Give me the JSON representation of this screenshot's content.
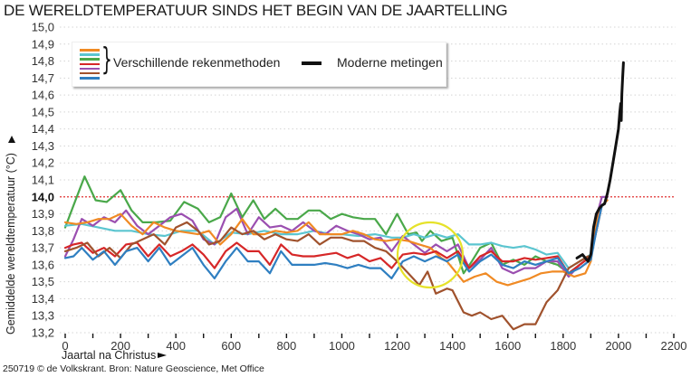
{
  "header": {
    "title": "DE WERELDTEMPERATUUR SINDS HET BEGIN VAN DE JAARTELLING"
  },
  "footer": {
    "source": "250719 © de Volkskrant. Bron: Nature Geoscience, Met Office"
  },
  "legend": {
    "methods_label": "Verschillende rekenmethoden",
    "modern_label": "Moderne metingen",
    "swatch_colors": [
      "#f08a24",
      "#5bc5d0",
      "#4aa84a",
      "#d62728",
      "#9b4fb0",
      "#a0522d",
      "#2f7fc1"
    ]
  },
  "chart_data": {
    "type": "line",
    "title": "DE WERELDTEMPERATUUR SINDS HET BEGIN VAN DE JAARTELLING",
    "xlabel": "Jaartal na Christus",
    "ylabel": "Gemiddelde wereldtemperatuur (°C)",
    "xlim": [
      0,
      2200
    ],
    "ylim": [
      13.2,
      15.0
    ],
    "xticks": [
      0,
      200,
      400,
      600,
      800,
      1000,
      1200,
      1400,
      1600,
      1800,
      2000,
      2200
    ],
    "yticks": [
      "15,0",
      "14,9",
      "14,8",
      "14,7",
      "14,6",
      "14,5",
      "14,4",
      "14,3",
      "14,2",
      "14,1",
      "14,0",
      "13,9",
      "13,8",
      "13,7",
      "13,6",
      "13,5",
      "13,4",
      "13,3",
      "13,2"
    ],
    "highlight_ytick": "14,0",
    "reference_line": {
      "y": 14.0,
      "color": "#e03030",
      "style": "dotted"
    },
    "grid": "horizontal dotted",
    "annotation": {
      "type": "circle",
      "center_x": 1320,
      "center_y": 13.66,
      "color": "#e6e22a"
    },
    "series": [
      {
        "name": "Rekenmethode groen",
        "color": "#4aa84a",
        "x": [
          0,
          30,
          70,
          110,
          150,
          200,
          240,
          280,
          330,
          380,
          430,
          480,
          520,
          560,
          600,
          640,
          680,
          720,
          760,
          800,
          840,
          880,
          920,
          960,
          1000,
          1040,
          1080,
          1120,
          1160,
          1200,
          1240,
          1270,
          1290,
          1320,
          1360,
          1400,
          1440,
          1470,
          1500,
          1540,
          1580,
          1620,
          1660,
          1700,
          1740,
          1780,
          1820,
          1860,
          1900,
          1920,
          1940
        ],
        "y": [
          13.82,
          13.95,
          14.12,
          13.98,
          13.97,
          14.04,
          13.92,
          13.85,
          13.85,
          13.86,
          13.97,
          13.93,
          13.85,
          13.88,
          14.02,
          13.88,
          13.98,
          13.87,
          13.93,
          13.87,
          13.87,
          13.92,
          13.92,
          13.87,
          13.9,
          13.88,
          13.87,
          13.87,
          13.78,
          13.9,
          13.78,
          13.79,
          13.74,
          13.8,
          13.74,
          13.76,
          13.55,
          13.62,
          13.7,
          13.73,
          13.6,
          13.63,
          13.6,
          13.65,
          13.62,
          13.6,
          13.55,
          13.6,
          13.65,
          13.8,
          13.95
        ]
      },
      {
        "name": "Rekenmethode cyaan",
        "color": "#5bc5d0",
        "x": [
          0,
          60,
          120,
          180,
          240,
          300,
          360,
          420,
          480,
          540,
          600,
          660,
          720,
          780,
          840,
          900,
          960,
          1000,
          1060,
          1120,
          1180,
          1220,
          1260,
          1300,
          1340,
          1380,
          1420,
          1460,
          1500,
          1540,
          1580,
          1620,
          1660,
          1700,
          1740,
          1780,
          1820,
          1860,
          1900,
          1920,
          1940
        ],
        "y": [
          13.83,
          13.84,
          13.82,
          13.8,
          13.8,
          13.78,
          13.77,
          13.8,
          13.8,
          13.72,
          13.79,
          13.78,
          13.8,
          13.78,
          13.78,
          13.8,
          13.78,
          13.78,
          13.77,
          13.78,
          13.76,
          13.76,
          13.78,
          13.76,
          13.78,
          13.76,
          13.78,
          13.72,
          13.72,
          13.73,
          13.71,
          13.7,
          13.71,
          13.69,
          13.66,
          13.67,
          13.58,
          13.62,
          13.66,
          13.8,
          13.95
        ]
      },
      {
        "name": "Rekenmethode paars",
        "color": "#9b4fb0",
        "x": [
          0,
          30,
          60,
          100,
          140,
          180,
          220,
          260,
          300,
          340,
          380,
          420,
          460,
          500,
          540,
          580,
          620,
          660,
          700,
          740,
          780,
          820,
          860,
          900,
          940,
          980,
          1020,
          1060,
          1100,
          1140,
          1180,
          1220,
          1260,
          1300,
          1340,
          1380,
          1420,
          1460,
          1500,
          1540,
          1580,
          1620,
          1660,
          1700,
          1740,
          1780,
          1820,
          1860,
          1900,
          1920,
          1940,
          1960
        ],
        "y": [
          13.65,
          13.75,
          13.87,
          13.83,
          13.88,
          13.85,
          13.92,
          13.83,
          13.78,
          13.83,
          13.88,
          13.9,
          13.86,
          13.75,
          13.72,
          13.88,
          13.93,
          13.78,
          13.88,
          13.82,
          13.83,
          13.8,
          13.85,
          13.8,
          13.78,
          13.83,
          13.8,
          13.78,
          13.75,
          13.76,
          13.68,
          13.77,
          13.72,
          13.67,
          13.72,
          13.68,
          13.72,
          13.58,
          13.63,
          13.7,
          13.58,
          13.55,
          13.58,
          13.58,
          13.62,
          13.62,
          13.53,
          13.6,
          13.65,
          13.88,
          14.0,
          14.0
        ]
      },
      {
        "name": "Rekenmethode oranje",
        "color": "#f08a24",
        "x": [
          0,
          40,
          80,
          120,
          160,
          200,
          240,
          280,
          320,
          360,
          400,
          440,
          480,
          520,
          560,
          600,
          640,
          680,
          720,
          760,
          800,
          840,
          880,
          920,
          960,
          1000,
          1040,
          1080,
          1120,
          1160,
          1200,
          1240,
          1280,
          1320,
          1360,
          1380,
          1440,
          1480,
          1520,
          1560,
          1600,
          1640,
          1680,
          1720,
          1760,
          1800,
          1840,
          1880,
          1900,
          1920,
          1940,
          1960
        ],
        "y": [
          13.85,
          13.84,
          13.85,
          13.87,
          13.87,
          13.9,
          13.83,
          13.78,
          13.85,
          13.82,
          13.8,
          13.79,
          13.78,
          13.8,
          13.72,
          13.78,
          13.87,
          13.78,
          13.78,
          13.8,
          13.79,
          13.8,
          13.85,
          13.78,
          13.78,
          13.78,
          13.8,
          13.78,
          13.75,
          13.74,
          13.75,
          13.74,
          13.72,
          13.7,
          13.64,
          13.62,
          13.5,
          13.53,
          13.55,
          13.5,
          13.48,
          13.5,
          13.52,
          13.55,
          13.56,
          13.56,
          13.53,
          13.55,
          13.62,
          13.85,
          13.95,
          13.98
        ]
      },
      {
        "name": "Rekenmethode rood",
        "color": "#d62728",
        "x": [
          0,
          30,
          60,
          100,
          140,
          180,
          220,
          260,
          300,
          340,
          380,
          420,
          460,
          500,
          540,
          580,
          620,
          660,
          700,
          740,
          780,
          820,
          860,
          900,
          940,
          980,
          1020,
          1060,
          1100,
          1140,
          1180,
          1220,
          1260,
          1300,
          1340,
          1380,
          1420,
          1460,
          1500,
          1540,
          1580,
          1620,
          1660,
          1700,
          1740,
          1780,
          1820,
          1860,
          1900,
          1920,
          1940
        ],
        "y": [
          13.7,
          13.72,
          13.73,
          13.67,
          13.7,
          13.65,
          13.72,
          13.73,
          13.65,
          13.72,
          13.65,
          13.68,
          13.72,
          13.66,
          13.58,
          13.68,
          13.73,
          13.68,
          13.68,
          13.6,
          13.72,
          13.66,
          13.65,
          13.65,
          13.66,
          13.67,
          13.64,
          13.66,
          13.62,
          13.64,
          13.58,
          13.66,
          13.67,
          13.66,
          13.68,
          13.64,
          13.68,
          13.58,
          13.65,
          13.68,
          13.62,
          13.62,
          13.64,
          13.63,
          13.64,
          13.65,
          13.55,
          13.6,
          13.65,
          13.8,
          13.95
        ]
      },
      {
        "name": "Rekenmethode bruin",
        "color": "#a0522d",
        "x": [
          0,
          40,
          80,
          120,
          160,
          200,
          240,
          280,
          320,
          360,
          400,
          440,
          480,
          520,
          560,
          600,
          640,
          680,
          720,
          760,
          800,
          840,
          880,
          920,
          960,
          1000,
          1040,
          1080,
          1120,
          1160,
          1200,
          1240,
          1280,
          1310,
          1340,
          1380,
          1400,
          1440,
          1470,
          1500,
          1540,
          1580,
          1620,
          1660,
          1700,
          1740,
          1780,
          1820,
          1860,
          1890
        ],
        "y": [
          13.68,
          13.7,
          13.73,
          13.65,
          13.7,
          13.64,
          13.72,
          13.75,
          13.78,
          13.72,
          13.82,
          13.85,
          13.8,
          13.72,
          13.74,
          13.82,
          13.78,
          13.8,
          13.75,
          13.78,
          13.75,
          13.74,
          13.78,
          13.72,
          13.76,
          13.76,
          13.74,
          13.74,
          13.7,
          13.68,
          13.62,
          13.55,
          13.48,
          13.56,
          13.43,
          13.46,
          13.45,
          13.32,
          13.3,
          13.32,
          13.28,
          13.3,
          13.22,
          13.25,
          13.25,
          13.38,
          13.45,
          13.58,
          13.62,
          13.65
        ]
      },
      {
        "name": "Rekenmethode blauw",
        "color": "#2f7fc1",
        "x": [
          0,
          30,
          60,
          100,
          140,
          180,
          220,
          260,
          300,
          340,
          380,
          420,
          460,
          500,
          540,
          580,
          620,
          660,
          700,
          740,
          780,
          820,
          860,
          900,
          940,
          980,
          1020,
          1060,
          1100,
          1140,
          1180,
          1220,
          1260,
          1300,
          1340,
          1380,
          1420,
          1460,
          1500,
          1540,
          1580,
          1620,
          1660,
          1700,
          1740,
          1780,
          1820,
          1860,
          1900,
          1920,
          1940
        ],
        "y": [
          13.64,
          13.65,
          13.7,
          13.63,
          13.68,
          13.6,
          13.68,
          13.7,
          13.62,
          13.7,
          13.6,
          13.65,
          13.7,
          13.6,
          13.52,
          13.62,
          13.7,
          13.62,
          13.62,
          13.55,
          13.68,
          13.6,
          13.6,
          13.6,
          13.61,
          13.6,
          13.58,
          13.6,
          13.58,
          13.58,
          13.52,
          13.62,
          13.65,
          13.62,
          13.65,
          13.62,
          13.66,
          13.56,
          13.62,
          13.66,
          13.6,
          13.58,
          13.62,
          13.6,
          13.62,
          13.64,
          13.55,
          13.58,
          13.63,
          13.8,
          13.95
        ]
      },
      {
        "name": "Moderne metingen",
        "color": "#111111",
        "width": 3,
        "x": [
          1850,
          1870,
          1880,
          1890,
          1900,
          1910,
          1920,
          1930,
          1940,
          1950,
          1960,
          1970,
          1980,
          1990,
          2000,
          2005,
          2008,
          2010,
          2012,
          2015,
          2018
        ],
        "y": [
          13.64,
          13.66,
          13.64,
          13.62,
          13.66,
          13.82,
          13.9,
          13.93,
          13.95,
          13.96,
          14.02,
          14.1,
          14.2,
          14.3,
          14.4,
          14.5,
          14.55,
          14.45,
          14.6,
          14.7,
          14.79
        ]
      }
    ]
  }
}
